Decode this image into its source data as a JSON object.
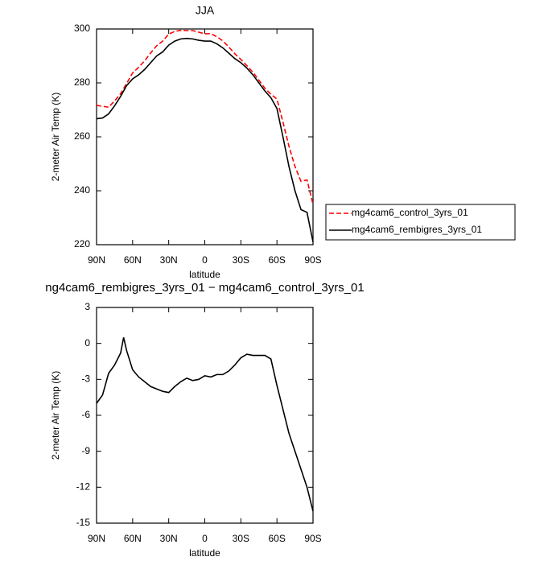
{
  "chart_data": [
    {
      "type": "line",
      "title": "JJA",
      "xlabel": "latitude",
      "ylabel": "2-meter Air Temp (K)",
      "x": [
        90,
        85,
        80,
        75,
        70,
        65,
        60,
        55,
        50,
        45,
        40,
        35,
        30,
        25,
        20,
        15,
        10,
        5,
        0,
        -5,
        -10,
        -15,
        -20,
        -25,
        -30,
        -35,
        -40,
        -45,
        -50,
        -55,
        -60,
        -65,
        -70,
        -75,
        -80,
        -85,
        -90
      ],
      "series": [
        {
          "name": "mg4cam6_control_3yrs_01",
          "color": "#ff0000",
          "linestyle": "dashed",
          "values": [
            271.7,
            271.3,
            271,
            273.3,
            276,
            279.8,
            283.7,
            285.8,
            288.2,
            291.1,
            293.8,
            295.5,
            298.1,
            299.1,
            299.5,
            299.4,
            299.4,
            298.8,
            298.2,
            298.3,
            297.1,
            295.6,
            293.3,
            290.8,
            288.7,
            286.4,
            284,
            281,
            278,
            275.8,
            274,
            265.5,
            256.5,
            249,
            243.5,
            244,
            235
          ]
        },
        {
          "name": "mg4cam6_rembigres_3yrs_01",
          "color": "#000000",
          "linestyle": "solid",
          "values": [
            266.7,
            267,
            268.5,
            271.5,
            275,
            279,
            281.5,
            283,
            285,
            287.5,
            290,
            291.5,
            294,
            295.5,
            296.3,
            296.5,
            296.3,
            295.8,
            295.5,
            295.5,
            294.5,
            293,
            291,
            289,
            287.5,
            285.5,
            283,
            280,
            277,
            274.5,
            270.5,
            260,
            249,
            240,
            233,
            232,
            221
          ]
        }
      ],
      "xlim": [
        90,
        -90
      ],
      "xticks": [
        {
          "value": 90,
          "label": "90N"
        },
        {
          "value": 60,
          "label": "60N"
        },
        {
          "value": 30,
          "label": "30N"
        },
        0,
        {
          "value": -30,
          "label": "30S"
        },
        {
          "value": -60,
          "label": "60S"
        },
        {
          "value": -90,
          "label": "90S"
        }
      ],
      "ylim": [
        220,
        300
      ],
      "yticks": [
        220,
        240,
        260,
        280,
        300
      ],
      "legend": "right"
    },
    {
      "type": "line",
      "title": "ng4cam6_rembigres_3yrs_01 − mg4cam6_control_3yrs_01",
      "xlabel": "latitude",
      "ylabel": "2-meter Air Temp (K)",
      "x": [
        90,
        85,
        80,
        75,
        70,
        67.5,
        65,
        60,
        55,
        50,
        45,
        40,
        35,
        30,
        25,
        20,
        15,
        10,
        5,
        0,
        -5,
        -10,
        -15,
        -20,
        -25,
        -30,
        -35,
        -40,
        -45,
        -50,
        -55,
        -60,
        -65,
        -70,
        -75,
        -80,
        -85,
        -90
      ],
      "series": [
        {
          "color": "#000000",
          "linestyle": "solid",
          "values": [
            -5,
            -4.3,
            -2.5,
            -1.8,
            -0.8,
            0.5,
            -0.6,
            -2.2,
            -2.8,
            -3.2,
            -3.6,
            -3.8,
            -4.0,
            -4.1,
            -3.6,
            -3.2,
            -2.9,
            -3.1,
            -3.0,
            -2.7,
            -2.8,
            -2.6,
            -2.6,
            -2.3,
            -1.8,
            -1.2,
            -0.9,
            -1.0,
            -1.0,
            -1.0,
            -1.3,
            -3.5,
            -5.5,
            -7.5,
            -9,
            -10.5,
            -12,
            -14
          ]
        }
      ],
      "xlim": [
        90,
        -90
      ],
      "xticks": [
        {
          "value": 90,
          "label": "90N"
        },
        {
          "value": 60,
          "label": "60N"
        },
        {
          "value": 30,
          "label": "30N"
        },
        0,
        {
          "value": -30,
          "label": "30S"
        },
        {
          "value": -60,
          "label": "60S"
        },
        {
          "value": -90,
          "label": "90S"
        }
      ],
      "ylim": [
        -15,
        3
      ],
      "yticks": [
        -15,
        -12,
        -9,
        -6,
        -3,
        0,
        3
      ]
    }
  ]
}
